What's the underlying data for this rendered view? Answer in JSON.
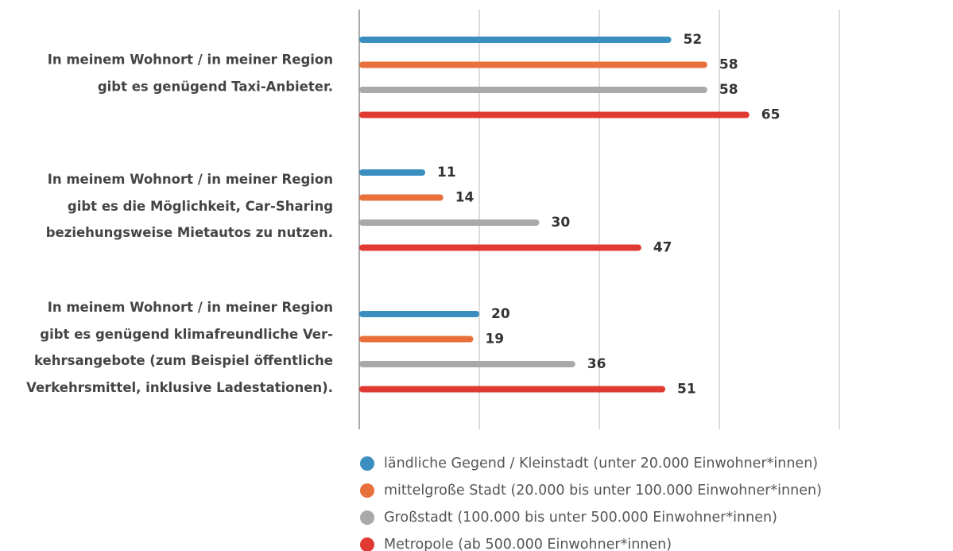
{
  "chart_data": {
    "type": "hbar",
    "categories": [
      "In meinem Wohnort / in meiner Region\ngibt es genügend Taxi-Anbieter.",
      "In meinem Wohnort / in meiner Region\ngibt es die Möglichkeit, Car-Sharing\nbeziehungsweise Mietautos zu nutzen.",
      "In meinem Wohnort / in meiner Region\ngibt es genügend klimafreundliche Ver-\nkehrsangebote (zum Beispiel öffentliche\nVerkehrsmittel, inklusive Ladestationen)."
    ],
    "series": [
      {
        "name": "ländliche Gegend / Kleinstadt (unter 20.000 Einwohner*innen)",
        "color": "#3a8fc0",
        "values": [
          52,
          11,
          20
        ]
      },
      {
        "name": "mittelgroße Stadt (20.000 bis unter 100.000 Einwohner*innen)",
        "color": "#e8703a",
        "values": [
          58,
          14,
          19
        ]
      },
      {
        "name": "Großstadt (100.000 bis unter 500.000 Einwohner*innen)",
        "color": "#a9a9a9",
        "values": [
          58,
          30,
          36
        ]
      },
      {
        "name": "Metropole (ab 500.000 Einwohner*innen)",
        "color": "#e03a32",
        "values": [
          65,
          47,
          51
        ]
      }
    ],
    "xlim": [
      0,
      80
    ],
    "xticks": [
      0,
      20,
      40,
      60,
      80
    ],
    "grid": true
  }
}
